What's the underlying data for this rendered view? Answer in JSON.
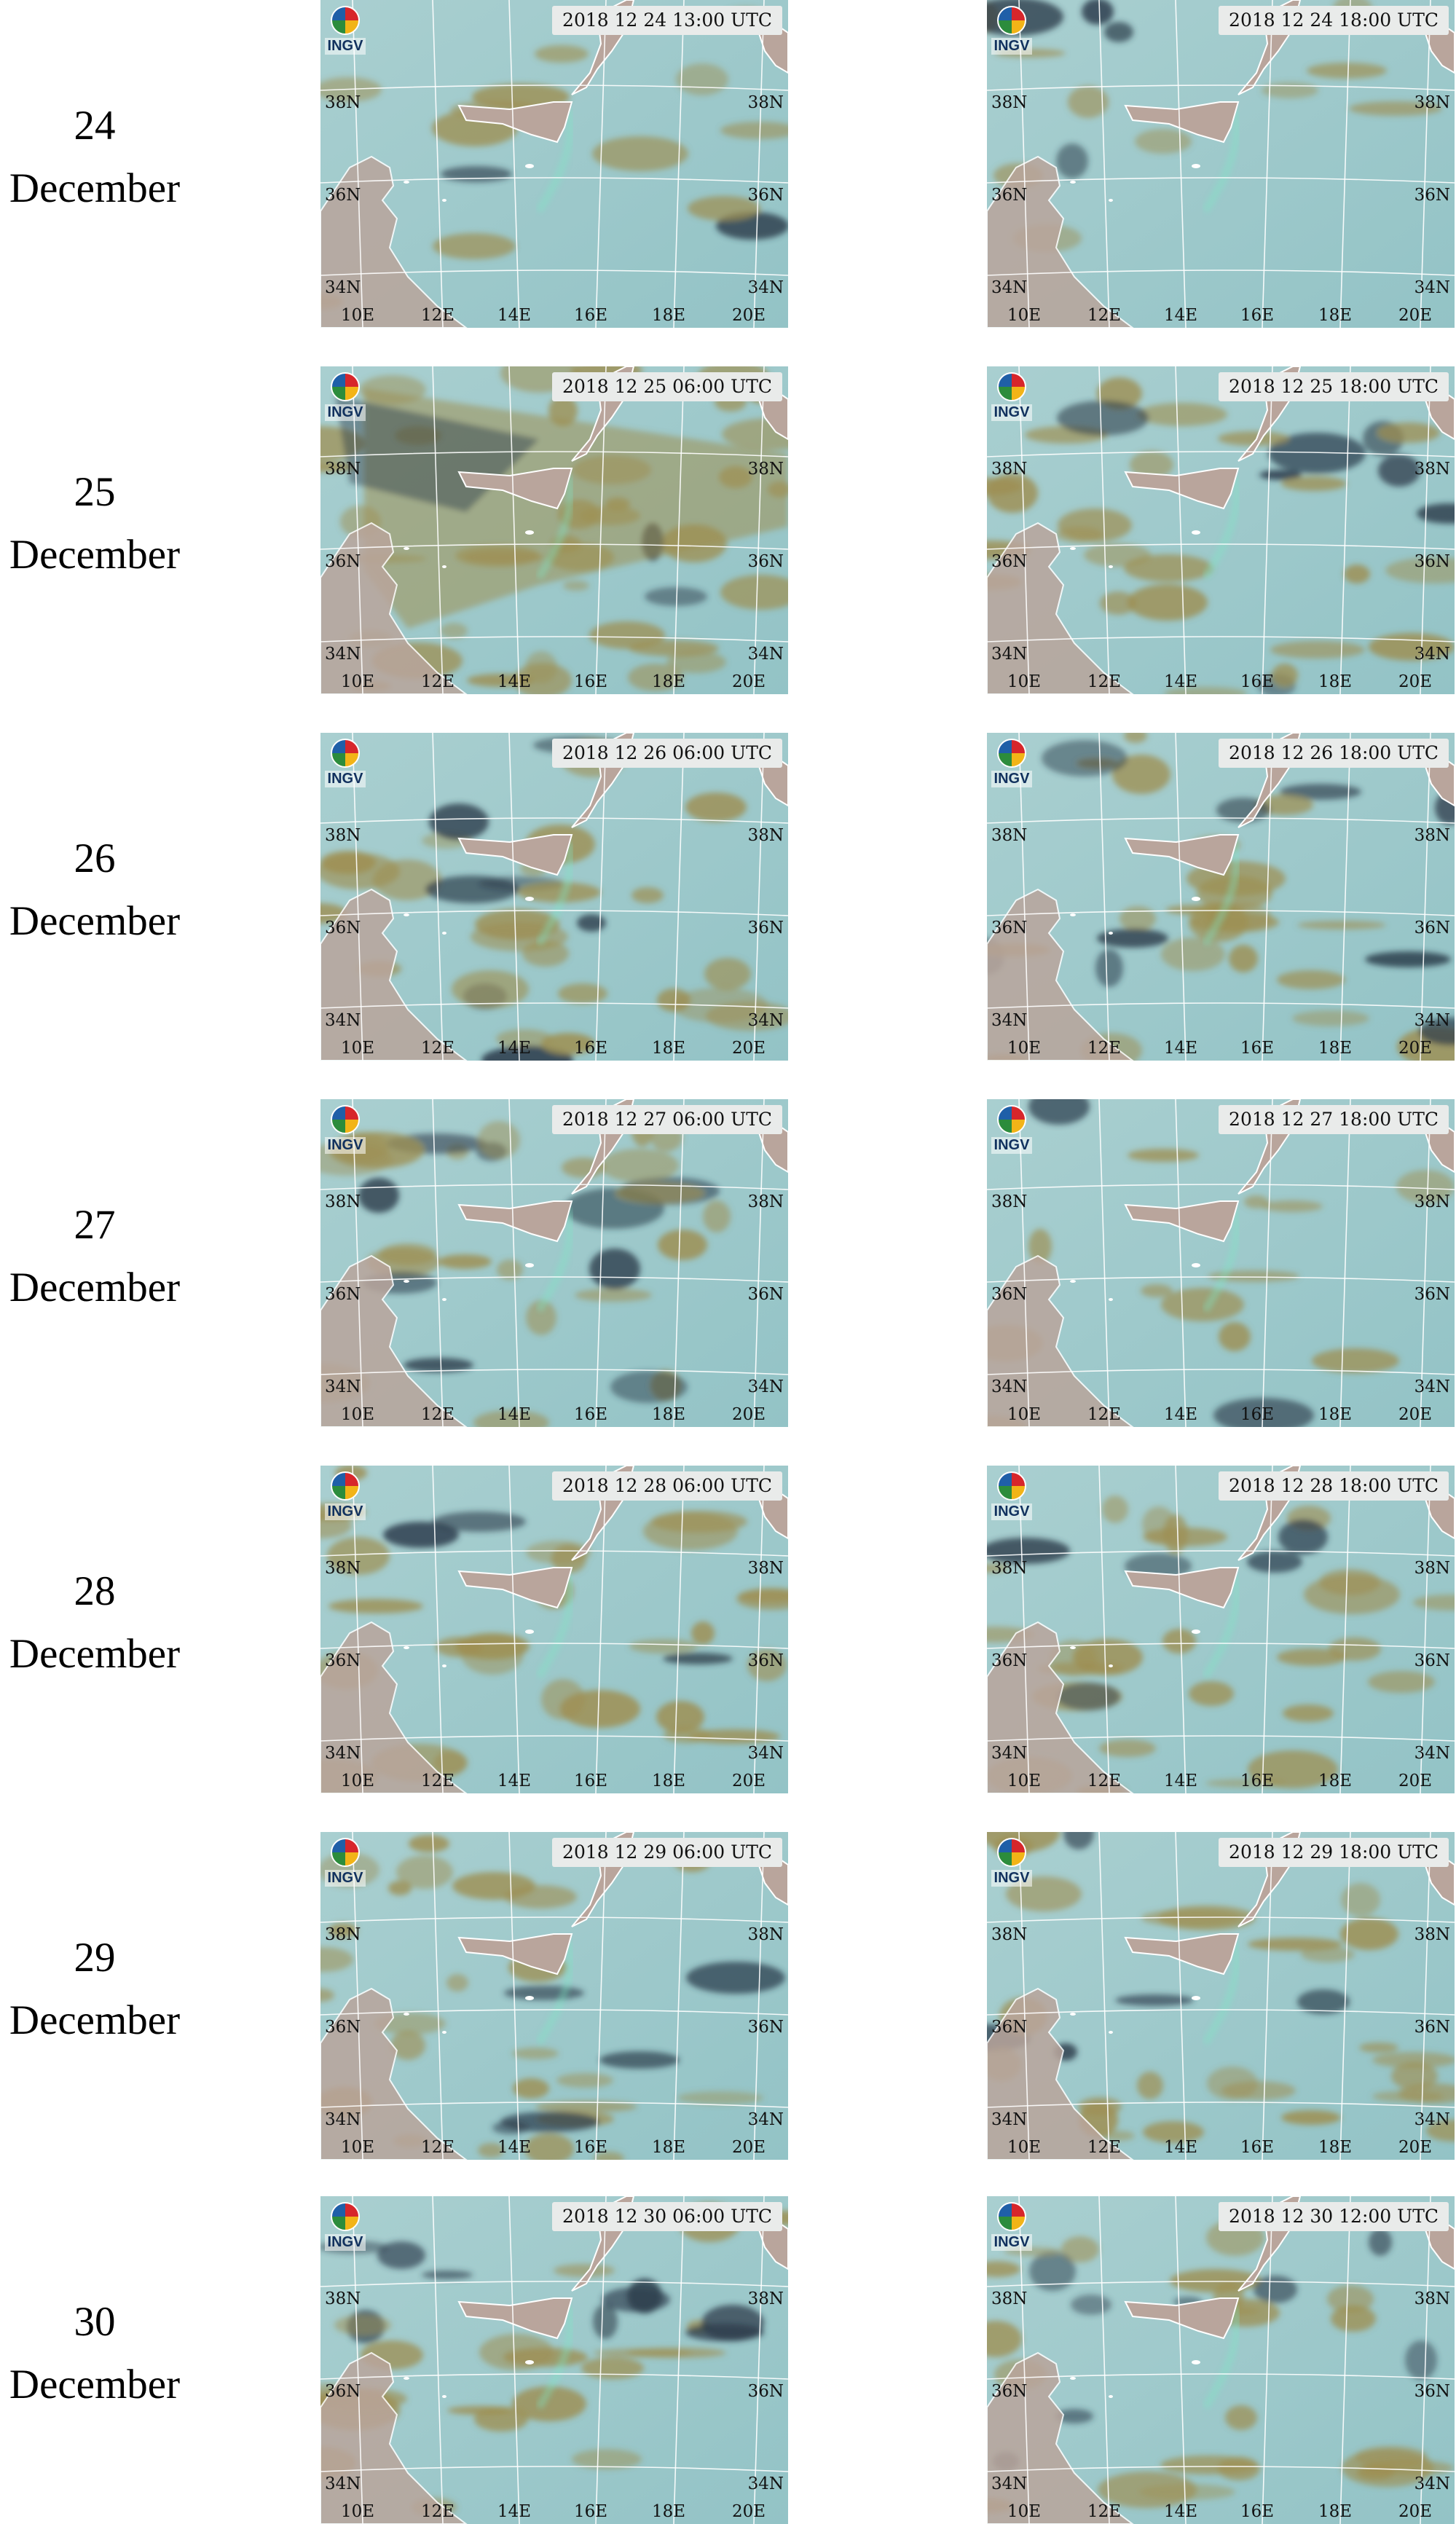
{
  "logo_text": "INGV",
  "lat_labels": [
    "38N",
    "36N",
    "34N"
  ],
  "lon_labels": [
    "10E",
    "12E",
    "14E",
    "16E",
    "18E",
    "20E"
  ],
  "rows": [
    {
      "day": "24",
      "month": "December",
      "panels": [
        {
          "timestamp": "2018 12 24 13:00 UTC",
          "clouds": "light"
        },
        {
          "timestamp": "2018 12 24 18:00 UTC",
          "clouds": "light"
        }
      ]
    },
    {
      "day": "25",
      "month": "December",
      "panels": [
        {
          "timestamp": "2018 12 25 06:00 UTC",
          "clouds": "heavy"
        },
        {
          "timestamp": "2018 12 25 18:00 UTC",
          "clouds": "medium"
        }
      ]
    },
    {
      "day": "26",
      "month": "December",
      "panels": [
        {
          "timestamp": "2018 12 26 06:00 UTC",
          "clouds": "medium"
        },
        {
          "timestamp": "2018 12 26 18:00 UTC",
          "clouds": "medium"
        }
      ]
    },
    {
      "day": "27",
      "month": "December",
      "panels": [
        {
          "timestamp": "2018 12 27 06:00 UTC",
          "clouds": "medium"
        },
        {
          "timestamp": "2018 12 27 18:00 UTC",
          "clouds": "light"
        }
      ]
    },
    {
      "day": "28",
      "month": "December",
      "panels": [
        {
          "timestamp": "2018 12 28 06:00 UTC",
          "clouds": "medium"
        },
        {
          "timestamp": "2018 12 28 18:00 UTC",
          "clouds": "medium"
        }
      ]
    },
    {
      "day": "29",
      "month": "December",
      "panels": [
        {
          "timestamp": "2018 12 29 06:00 UTC",
          "clouds": "medium"
        },
        {
          "timestamp": "2018 12 29 18:00 UTC",
          "clouds": "medium"
        }
      ]
    },
    {
      "day": "30",
      "month": "December",
      "panels": [
        {
          "timestamp": "2018 12 30 06:00 UTC",
          "clouds": "medium"
        },
        {
          "timestamp": "2018 12 30 12:00 UTC",
          "clouds": "medium"
        }
      ]
    }
  ],
  "colors": {
    "sea": "#9ec8cc",
    "land": "#b9a59c",
    "cloud_brown": "#9e8f52",
    "cloud_dark": "#2b3b4a",
    "plume": "#7fe7c6",
    "grid": "#ffffff"
  }
}
